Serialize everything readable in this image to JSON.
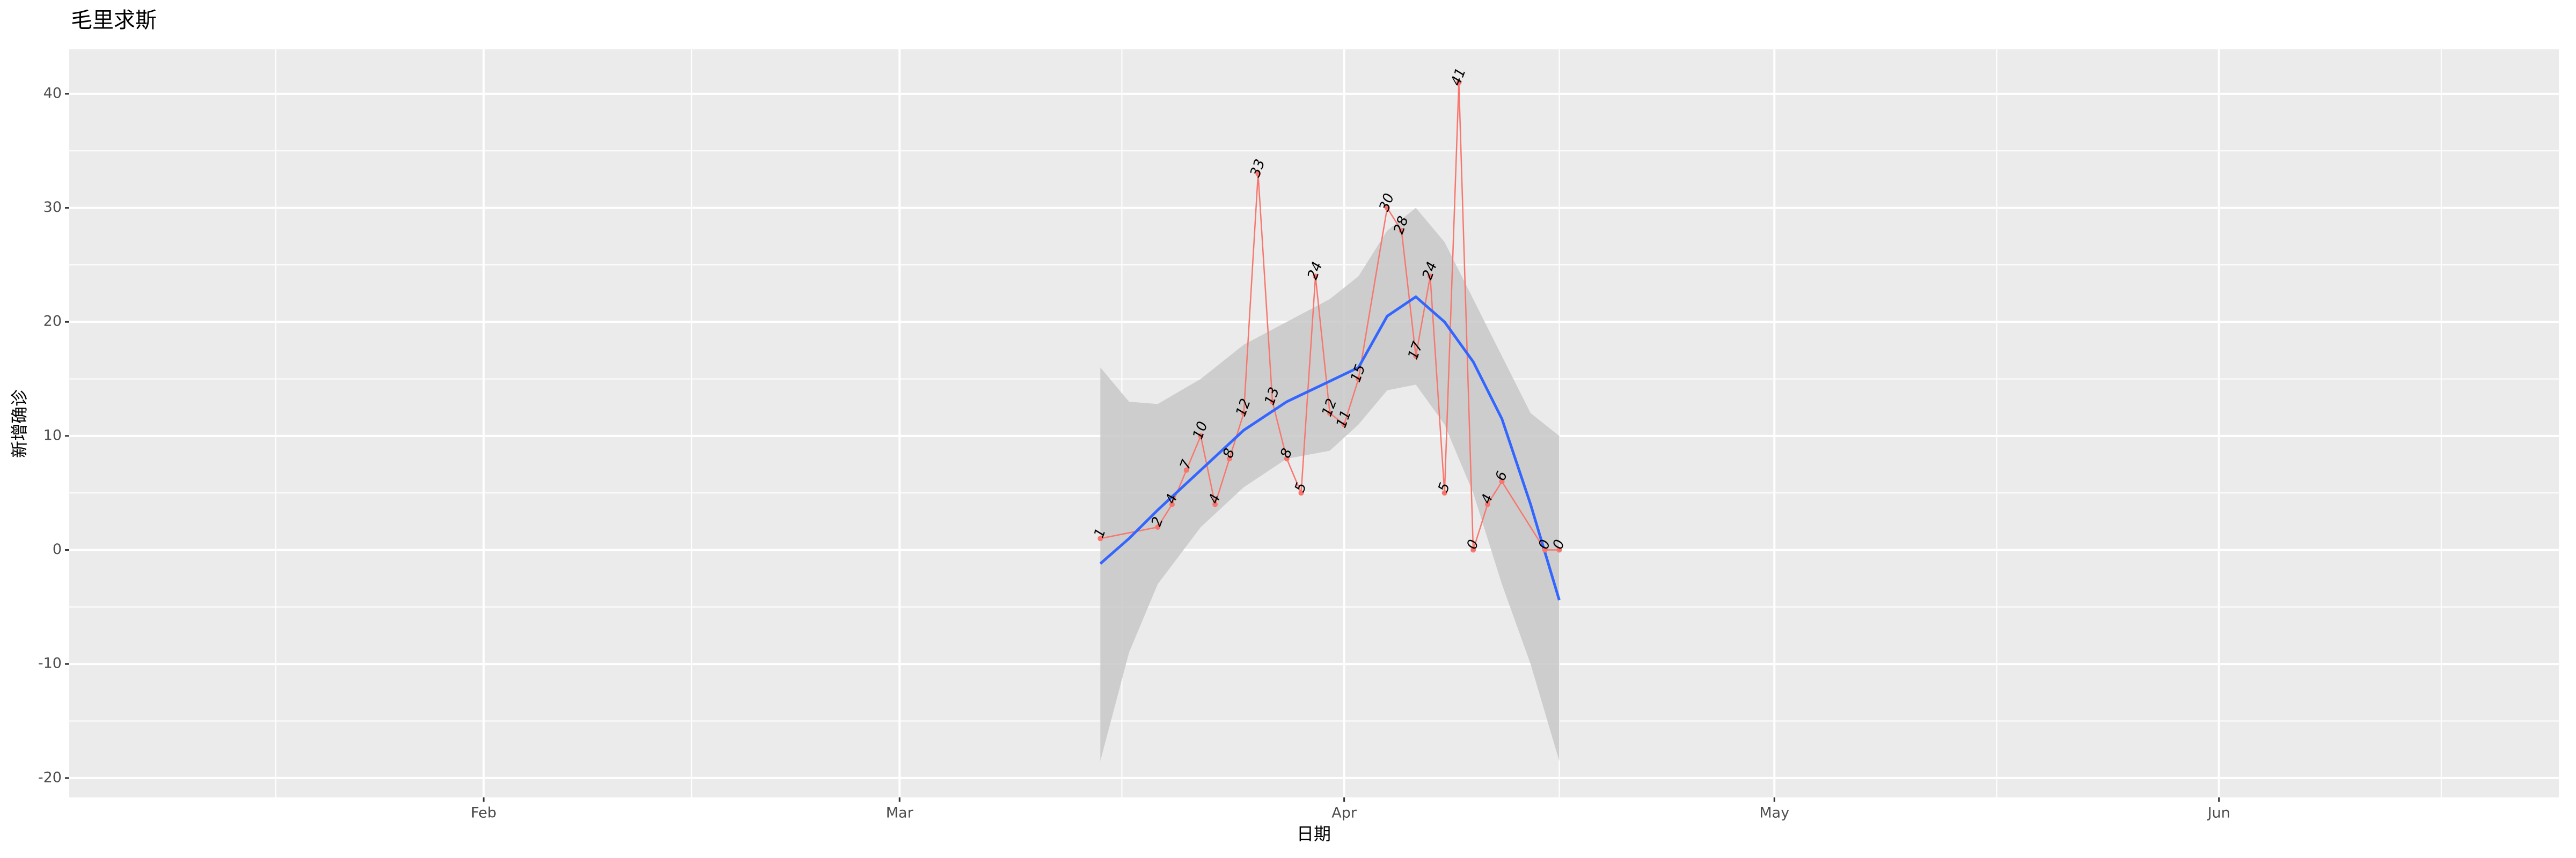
{
  "chart_data": {
    "type": "line",
    "title": "毛里求斯",
    "x_label": "日期",
    "y_label": "新增确诊",
    "x": [
      75,
      79,
      80,
      81,
      82,
      83,
      84,
      85,
      86,
      87,
      88,
      89,
      90,
      91,
      92,
      93,
      95,
      96,
      97,
      98,
      99,
      100,
      101,
      102,
      103,
      106,
      107
    ],
    "values": [
      1,
      2,
      4,
      7,
      10,
      4,
      8,
      12,
      33,
      13,
      8,
      5,
      24,
      12,
      11,
      15,
      30,
      28,
      17,
      24,
      5,
      41,
      0,
      4,
      6,
      0,
      0
    ],
    "color": "#f8766d",
    "smooth": {
      "x": [
        75,
        77,
        79,
        82,
        85,
        88,
        91,
        93,
        95,
        97,
        99,
        101,
        103,
        105,
        107
      ],
      "values": [
        -1.2,
        1,
        3.5,
        7,
        10.5,
        13,
        14.8,
        16,
        20.5,
        22.2,
        20,
        16.5,
        11.5,
        4,
        -4.4
      ],
      "lower": [
        -18.5,
        -9,
        -3,
        2,
        5.5,
        8,
        8.7,
        11,
        14,
        14.5,
        11,
        5,
        -3,
        -10,
        -18.5
      ],
      "upper": [
        16,
        13,
        12.8,
        15,
        18,
        20,
        22,
        24,
        28,
        30,
        27,
        22,
        17,
        12,
        10
      ],
      "color": "#3366ff",
      "fill": "#c8c8c8"
    },
    "xlim": [
      3.1,
      176.7
    ],
    "xticks": [
      {
        "value": 32,
        "label": "Feb"
      },
      {
        "value": 61,
        "label": "Mar"
      },
      {
        "value": 92,
        "label": "Apr"
      },
      {
        "value": 122,
        "label": "May"
      },
      {
        "value": 153,
        "label": "Jun"
      }
    ],
    "ylim": [
      -21.7,
      43.9
    ],
    "yticks": [
      -20,
      -10,
      0,
      10,
      20,
      30,
      40
    ],
    "grid": true
  }
}
